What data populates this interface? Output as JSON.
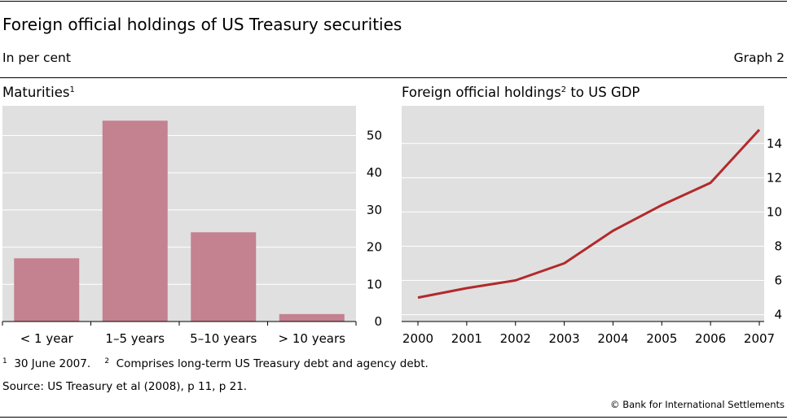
{
  "header": {
    "title": "Foreign official holdings of US Treasury securities",
    "units": "In per cent",
    "graph_label": "Graph 2"
  },
  "panels": {
    "left_title": "Maturities",
    "left_title_note": "1",
    "right_title_pre": "Foreign official holdings",
    "right_title_note": "2",
    "right_title_post": " to US GDP"
  },
  "footnotes": {
    "n1_mark": "1",
    "n1_text": "30 June 2007.",
    "n2_mark": "2",
    "n2_text": "Comprises long-term US Treasury debt and agency debt.",
    "source": "Source: US Treasury et al (2008), p 11, p 21.",
    "copyright": "© Bank for International Settlements"
  },
  "colors": {
    "bar": "#c48190",
    "line": "#b22a2c",
    "plot_bg": "#e0e0e0",
    "grid": "#ffffff"
  },
  "chart_data": [
    {
      "type": "bar",
      "title": "Maturities",
      "categories": [
        "< 1 year",
        "1–5 years",
        "5–10 years",
        "> 10 years"
      ],
      "values": [
        17,
        54,
        24,
        2
      ],
      "ylim": [
        0,
        58
      ],
      "yticks": [
        0,
        10,
        20,
        30,
        40,
        50
      ],
      "axis_side": "right",
      "grid": true
    },
    {
      "type": "line",
      "title": "Foreign official holdings to US GDP",
      "x": [
        2000,
        2001,
        2002,
        2003,
        2004,
        2005,
        2006,
        2007
      ],
      "values": [
        5.0,
        5.55,
        6.0,
        7.0,
        8.9,
        10.4,
        11.7,
        14.8
      ],
      "ylim": [
        3.6,
        16.2
      ],
      "yticks": [
        4,
        6,
        8,
        10,
        12,
        14
      ],
      "axis_side": "right",
      "grid": true
    }
  ]
}
